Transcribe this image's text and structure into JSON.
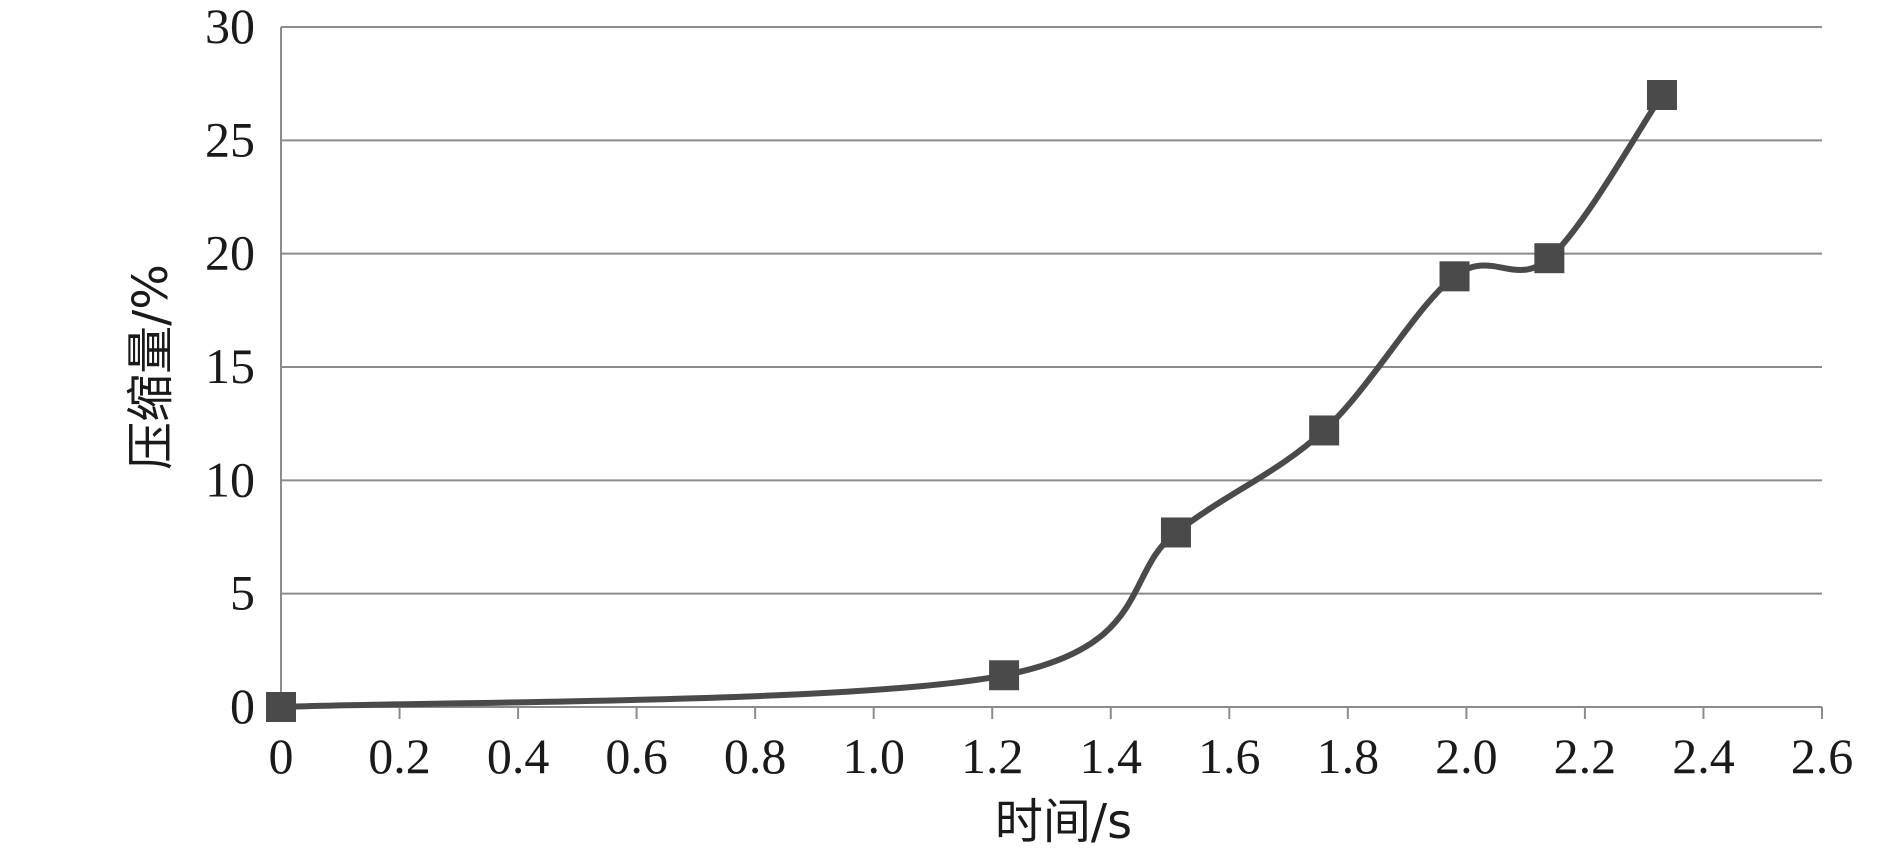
{
  "chart_data": {
    "type": "line",
    "title": "",
    "xlabel": "时间/s",
    "ylabel": "压缩量/%",
    "xlim": [
      0,
      2.6
    ],
    "ylim": [
      0,
      30
    ],
    "x_ticks": [
      "0",
      "0.2",
      "0.4",
      "0.6",
      "0.8",
      "1.0",
      "1.2",
      "1.4",
      "1.6",
      "1.8",
      "2.0",
      "2.2",
      "2.4",
      "2.6"
    ],
    "y_ticks": [
      "0",
      "5",
      "10",
      "15",
      "20",
      "25",
      "30"
    ],
    "grid": "horizontal",
    "legend": "none",
    "line_color": "#4a4a4a",
    "marker": "square",
    "series": [
      {
        "x": [
          0,
          1.22,
          1.51,
          1.76,
          1.98,
          2.14,
          2.33
        ],
        "y": [
          0,
          1.4,
          7.7,
          12.2,
          19.0,
          19.8,
          27.0
        ]
      }
    ]
  }
}
